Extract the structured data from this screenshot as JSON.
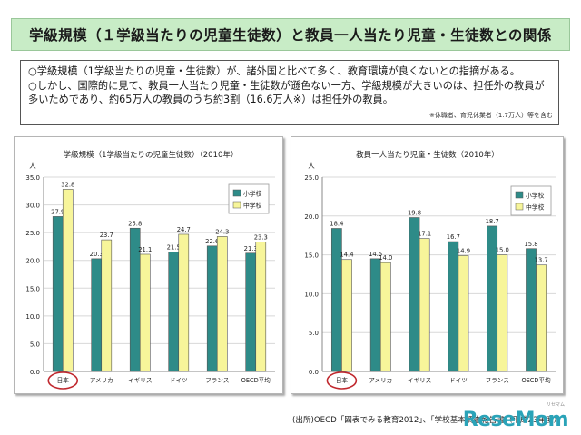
{
  "title": "学級規模（１学級当たりの児童生徒数）と教員一人当たり児童・生徒数との関係",
  "bullets": [
    "○学級規模（1学級当たりの児童・生徒数）が、諸外国と比べて多く、教育環境が良くないとの指摘がある。",
    "○しかし、国際的に見て、教員一人当たり児童・生徒数が遜色ない一方、学級規模が大きいのは、担任外の教員が多いためであり、約65万人の教員のうち約3割（16.6万人※）は担任外の教員。"
  ],
  "note": "※休職者、育児休業者（1.7万人）等を含む",
  "source": "(出所)OECD「図表でみる教育2012」、「学校基本調査報告書（平成23年度）」",
  "logo": "ReseMom",
  "logo_small": "リセマム",
  "colors": {
    "elementary": "#2e8b88",
    "junior_high": "#f7f59a",
    "highlight_circle": "#c0282e"
  },
  "chart_data": [
    {
      "type": "bar",
      "title": "学級規模（1学級当たりの児童生徒数）（2010年）",
      "yunit": "人",
      "ylim": [
        0,
        35
      ],
      "yticks": [
        0.0,
        5.0,
        10.0,
        15.0,
        20.0,
        25.0,
        30.0,
        35.0
      ],
      "categories": [
        "日本",
        "アメリカ",
        "イギリス",
        "ドイツ",
        "フランス",
        "OECD平均"
      ],
      "highlight": "日本",
      "legend_position": "top-right",
      "series": [
        {
          "name": "小学校",
          "values": [
            27.9,
            20.3,
            25.8,
            21.5,
            22.6,
            21.3
          ]
        },
        {
          "name": "中学校",
          "values": [
            32.8,
            23.7,
            21.1,
            24.7,
            24.3,
            23.3
          ]
        }
      ]
    },
    {
      "type": "bar",
      "title": "教員一人当たり児童・生徒数（2010年）",
      "yunit": "人",
      "ylim": [
        0,
        25
      ],
      "yticks": [
        0.0,
        5.0,
        10.0,
        15.0,
        20.0,
        25.0
      ],
      "categories": [
        "日本",
        "アメリカ",
        "イギリス",
        "ドイツ",
        "フランス",
        "OECD平均"
      ],
      "highlight": "日本",
      "legend_position": "top-right",
      "series": [
        {
          "name": "小学校",
          "values": [
            18.4,
            14.5,
            19.8,
            16.7,
            18.7,
            15.8
          ]
        },
        {
          "name": "中学校",
          "values": [
            14.4,
            14.0,
            17.1,
            14.9,
            15.0,
            13.7
          ]
        }
      ]
    }
  ]
}
